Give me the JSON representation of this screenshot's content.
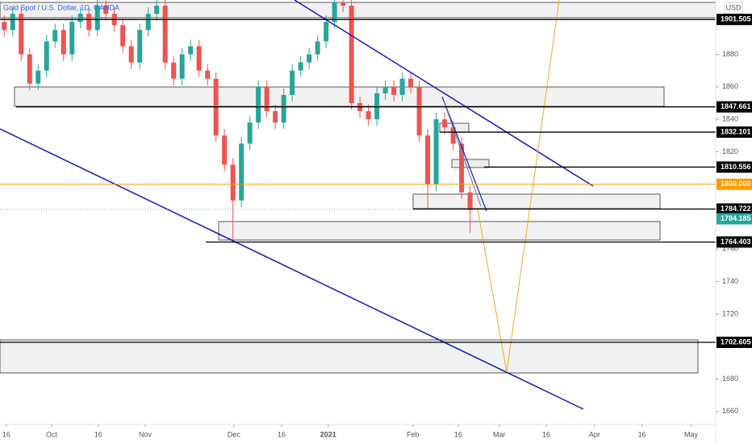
{
  "chart_data": {
    "type": "candlestick",
    "title": "Gold Spot / U.S. Dollar, 1D, OANDA",
    "currency": "USD",
    "up_color": "#26a69a",
    "down_color": "#ef5350",
    "x": [
      1,
      3,
      5,
      7,
      9,
      11,
      13,
      15,
      17,
      19,
      21,
      23,
      25,
      27,
      29,
      31,
      33,
      35,
      37,
      39,
      41,
      43,
      45,
      47,
      49,
      51,
      53,
      55,
      57,
      59,
      61,
      63,
      65,
      67,
      69,
      71,
      73,
      75,
      77,
      79,
      81,
      83,
      85,
      87,
      89,
      91,
      93,
      95,
      97,
      99,
      101,
      103,
      105,
      107,
      109,
      111
    ],
    "open": [
      1900,
      1895,
      1905,
      1880,
      1862,
      1870,
      1888,
      1895,
      1880,
      1900,
      1905,
      1895,
      1910,
      1905,
      1898,
      1885,
      1875,
      1895,
      1905,
      1910,
      1875,
      1865,
      1880,
      1885,
      1870,
      1865,
      1830,
      1812,
      1790,
      1825,
      1838,
      1860,
      1845,
      1838,
      1855,
      1870,
      1875,
      1880,
      1888,
      1900,
      1912,
      1910,
      1850,
      1845,
      1840,
      1856,
      1860,
      1855,
      1865,
      1860,
      1830,
      1800,
      1840,
      1835,
      1825,
      1795
    ],
    "high": [
      1904,
      1909,
      1909,
      1884,
      1874,
      1892,
      1899,
      1899,
      1904,
      1909,
      1909,
      1914,
      1914,
      1909,
      1902,
      1889,
      1899,
      1909,
      1914,
      1914,
      1879,
      1884,
      1889,
      1889,
      1874,
      1869,
      1834,
      1816,
      1829,
      1842,
      1864,
      1864,
      1849,
      1859,
      1874,
      1879,
      1884,
      1892,
      1904,
      1916,
      1916,
      1914,
      1854,
      1849,
      1860,
      1864,
      1864,
      1869,
      1869,
      1864,
      1834,
      1844,
      1844,
      1839,
      1829,
      1799
    ],
    "low": [
      1891,
      1891,
      1876,
      1858,
      1858,
      1866,
      1884,
      1876,
      1876,
      1896,
      1891,
      1891,
      1901,
      1894,
      1881,
      1871,
      1871,
      1891,
      1901,
      1871,
      1861,
      1861,
      1876,
      1866,
      1861,
      1826,
      1808,
      1764,
      1786,
      1821,
      1834,
      1841,
      1834,
      1834,
      1851,
      1866,
      1871,
      1876,
      1884,
      1896,
      1906,
      1846,
      1841,
      1836,
      1836,
      1852,
      1851,
      1851,
      1856,
      1826,
      1785,
      1796,
      1831,
      1821,
      1791,
      1770
    ],
    "close": [
      1895,
      1905,
      1880,
      1862,
      1870,
      1888,
      1895,
      1880,
      1900,
      1905,
      1895,
      1910,
      1905,
      1898,
      1885,
      1875,
      1895,
      1905,
      1910,
      1875,
      1865,
      1880,
      1885,
      1870,
      1865,
      1830,
      1812,
      1790,
      1825,
      1838,
      1860,
      1845,
      1838,
      1855,
      1870,
      1875,
      1880,
      1888,
      1900,
      1912,
      1910,
      1850,
      1845,
      1840,
      1856,
      1860,
      1855,
      1865,
      1860,
      1830,
      1800,
      1840,
      1835,
      1825,
      1795,
      1784.185
    ],
    "xlim": [
      0,
      169
    ],
    "xticks": [
      {
        "value": 1.5,
        "label": "16"
      },
      {
        "value": 12.2,
        "label": "Oct"
      },
      {
        "value": 23.2,
        "label": "16"
      },
      {
        "value": 34.3,
        "label": "Nov"
      },
      {
        "value": 55.2,
        "label": "Dec"
      },
      {
        "value": 66.5,
        "label": "16"
      },
      {
        "value": 77.5,
        "label": "2021"
      },
      {
        "value": 97.5,
        "label": "Feb"
      },
      {
        "value": 108.2,
        "label": "16"
      },
      {
        "value": 117.9,
        "label": "Mar"
      },
      {
        "value": 129,
        "label": "16"
      },
      {
        "value": 140.4,
        "label": "Apr"
      },
      {
        "value": 151.6,
        "label": "16"
      },
      {
        "value": 163.2,
        "label": "May"
      }
    ],
    "ylim": [
      1651,
      1913.5
    ],
    "yticks": [
      1660,
      1680,
      1720,
      1740,
      1760,
      1820,
      1840,
      1860,
      1880
    ],
    "levels": [
      1901.505,
      1847.661,
      1832.101,
      1810.556,
      {
        "value": 1800,
        "label": "1800.000"
      },
      1784.722,
      1764.403,
      1702.605
    ],
    "last_price": 1784.185
  }
}
